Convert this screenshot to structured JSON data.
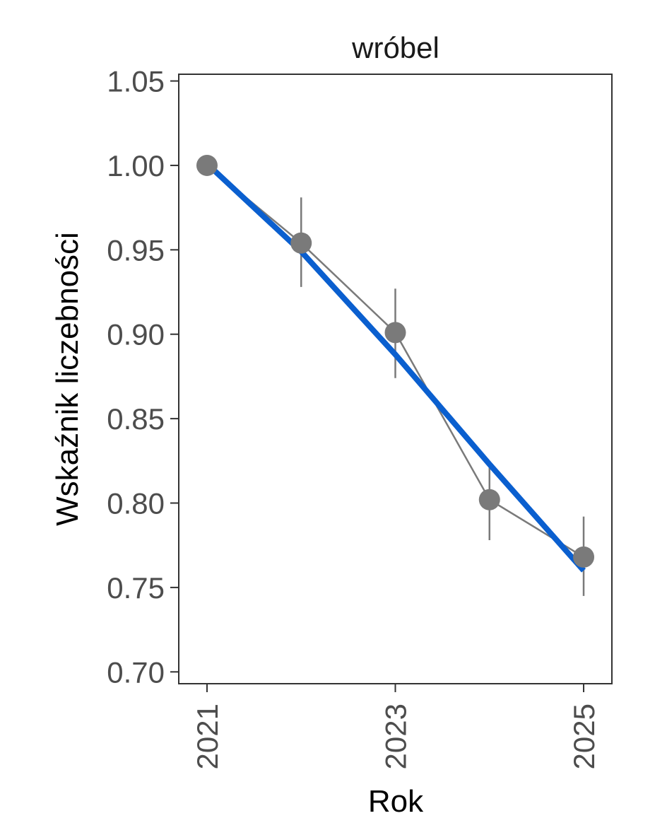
{
  "chart_data": {
    "type": "line",
    "title": "wróbel",
    "xlabel": "Rok",
    "ylabel": "Wskaźnik liczebności",
    "x": [
      2021,
      2022,
      2023,
      2024,
      2025
    ],
    "xlim": [
      2020.7,
      2025.3
    ],
    "xticks": [
      2021,
      2023,
      2025
    ],
    "xtick_labels": [
      "2021",
      "2023",
      "2025"
    ],
    "ylim": [
      0.693,
      1.054
    ],
    "yticks": [
      0.7,
      0.75,
      0.8,
      0.85,
      0.9,
      0.95,
      1.0,
      1.05
    ],
    "ytick_labels": [
      "0.70",
      "0.75",
      "0.80",
      "0.85",
      "0.90",
      "0.95",
      "1.00",
      "1.05"
    ],
    "grid": false,
    "series": [
      {
        "values": [
          1.0,
          0.954,
          0.901,
          0.802,
          0.768
        ],
        "lower": [
          1.0,
          0.928,
          0.874,
          0.778,
          0.745
        ],
        "upper": [
          1.0,
          0.981,
          0.927,
          0.821,
          0.792
        ],
        "color": "#7a7a7a"
      }
    ],
    "trend": {
      "x": [
        2021,
        2022,
        2023,
        2024,
        2025
      ],
      "values": [
        1.001,
        0.949,
        0.888,
        0.823,
        0.76
      ],
      "color": "#0a5fcf"
    }
  }
}
